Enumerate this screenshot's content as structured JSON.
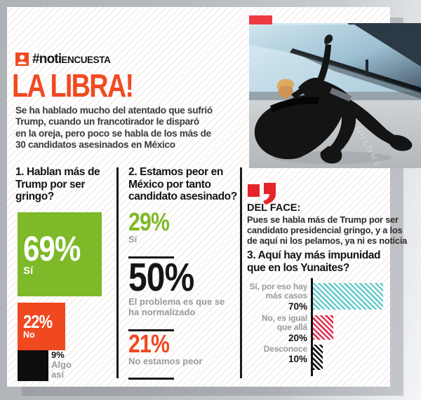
{
  "header": {
    "badge_hash": "#noti",
    "badge_rest": "ENCUESTA",
    "title": "LA LIBRA!",
    "intro": "Se ha hablado mucho del atentado que sufrió\nTrump, cuando un francotirador le disparó\nen la oreja, pero poco se habla de los más de\n30 candidatos asesinados en México"
  },
  "q1": {
    "title": "1. Hablan más de\nTrump por ser\ngringo?",
    "items": [
      {
        "pct": "69%",
        "label": "Sí"
      },
      {
        "pct": "22%",
        "label": "No"
      },
      {
        "pct": "9%",
        "label": "Algo\nasí"
      }
    ]
  },
  "q2": {
    "title": "2. Estamos peor en\nMéxico por tanto\ncandidato asesinado?",
    "items": [
      {
        "pct": "29%",
        "label": "Sí"
      },
      {
        "pct": "50%",
        "label": "El problema es que se\nha normalizado"
      },
      {
        "pct": "21%",
        "label": "No estamos peor"
      }
    ]
  },
  "del_face": {
    "title": "DEL FACE:",
    "body": "Pues se habla más de Trump por ser\ncandidato presidencial gringo, y a los\nde aquí ni los pelamos, ya ni es noticia"
  },
  "q3": {
    "title": "3. Aquí hay más impunidad\nque en los Yunaites?",
    "rows": [
      {
        "label": "Sí, por eso hay\nmás casos",
        "pct": "70%"
      },
      {
        "label": "No, es igual\nque allá",
        "pct": "20%"
      },
      {
        "label": "Desconoce",
        "pct": "10%"
      }
    ]
  },
  "photo": {
    "watermark": "GOLDME"
  },
  "colors": {
    "accent_orange_red": "#f04a21",
    "green": "#7db928",
    "crimson_bar": "#e13253",
    "teal_bar": "#68cbca",
    "black_bar": "#151515",
    "quote_icon_red": "#e5252b",
    "photo_tag_red": "#ee3b43",
    "gray_label": "#9a9a9a",
    "panel_bg": "#ffffff",
    "background_gray": "#b3b6bb"
  },
  "chart_data": [
    {
      "type": "bar",
      "title": "1. Hablan más de Trump por ser gringo?",
      "categories": [
        "Sí",
        "No",
        "Algo así"
      ],
      "values": [
        69,
        22,
        9
      ],
      "unit": "%",
      "colors": [
        "#7db928",
        "#f0481f",
        "#111111"
      ],
      "layout": "squares sized by value, stacked vertically, labels inside/beside"
    },
    {
      "type": "bar",
      "title": "2. Estamos peor en México por tanto candidato asesinado?",
      "categories": [
        "Sí",
        "El problema es que se ha normalizado",
        "No estamos peor"
      ],
      "values": [
        29,
        50,
        21
      ],
      "unit": "%",
      "colors": [
        "#7db928",
        "#151515",
        "#f0481f"
      ],
      "layout": "typographic list, number + gray caption + underline"
    },
    {
      "type": "bar",
      "orientation": "horizontal",
      "title": "3. Aquí hay más impunidad que en los Yunaites?",
      "categories": [
        "Sí, por eso hay más casos",
        "No, es igual que allá",
        "Desconoce"
      ],
      "values": [
        70,
        20,
        10
      ],
      "unit": "%",
      "colors": [
        "#68cbca",
        "#e13253",
        "#151515"
      ],
      "hatch": true,
      "legend_position": "left labels, right-aligned",
      "xlim": [
        0,
        70
      ]
    }
  ]
}
